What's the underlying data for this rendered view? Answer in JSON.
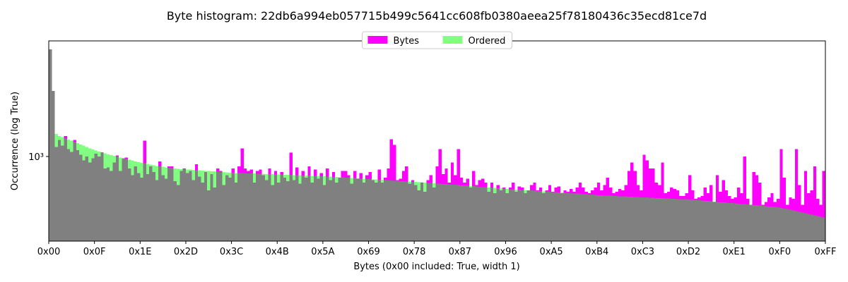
{
  "chart_data": {
    "type": "histogram",
    "title": "Byte histogram: 22db6a994eb057715b499c5641cc608fb0380aeea25f78180436c35ecd81ce7d",
    "x_label": "Bytes (0x00 included: True, width 1)",
    "y_label": "Occurrence (log True)",
    "yscale": "log",
    "legend": "upper center",
    "x": [
      0,
      1,
      2,
      3,
      4,
      5,
      6,
      7,
      8,
      9,
      10,
      11,
      12,
      13,
      14,
      15,
      16,
      17,
      18,
      19,
      20,
      21,
      22,
      23,
      24,
      25,
      26,
      27,
      28,
      29,
      30,
      31,
      32,
      33,
      34,
      35,
      36,
      37,
      38,
      39,
      40,
      41,
      42,
      43,
      44,
      45,
      46,
      47,
      48,
      49,
      50,
      51,
      52,
      53,
      54,
      55,
      56,
      57,
      58,
      59,
      60,
      61,
      62,
      63,
      64,
      65,
      66,
      67,
      68,
      69,
      70,
      71,
      72,
      73,
      74,
      75,
      76,
      77,
      78,
      79,
      80,
      81,
      82,
      83,
      84,
      85,
      86,
      87,
      88,
      89,
      90,
      91,
      92,
      93,
      94,
      95,
      96,
      97,
      98,
      99,
      100,
      101,
      102,
      103,
      104,
      105,
      106,
      107,
      108,
      109,
      110,
      111,
      112,
      113,
      114,
      115,
      116,
      117,
      118,
      119,
      120,
      121,
      122,
      123,
      124,
      125,
      126,
      127,
      128,
      129,
      130,
      131,
      132,
      133,
      134,
      135,
      136,
      137,
      138,
      139,
      140,
      141,
      142,
      143,
      144,
      145,
      146,
      147,
      148,
      149,
      150,
      151,
      152,
      153,
      154,
      155,
      156,
      157,
      158,
      159,
      160,
      161,
      162,
      163,
      164,
      165,
      166,
      167,
      168,
      169,
      170,
      171,
      172,
      173,
      174,
      175,
      176,
      177,
      178,
      179,
      180,
      181,
      182,
      183,
      184,
      185,
      186,
      187,
      188,
      189,
      190,
      191,
      192,
      193,
      194,
      195,
      196,
      197,
      198,
      199,
      200,
      201,
      202,
      203,
      204,
      205,
      206,
      207,
      208,
      209,
      210,
      211,
      212,
      213,
      214,
      215,
      216,
      217,
      218,
      219,
      220,
      221,
      222,
      223,
      224,
      225,
      226,
      227,
      228,
      229,
      230,
      231,
      232,
      233,
      234,
      235,
      236,
      237,
      238,
      239,
      240,
      241,
      242,
      243,
      244,
      245,
      246,
      247,
      248,
      249,
      250,
      251,
      252,
      253,
      254,
      255
    ],
    "series": [
      {
        "name": "Bytes",
        "color": "#ff00ff",
        "values": [
          3090,
          1995,
          1105,
          1190,
          1120,
          1240,
          1080,
          1050,
          1190,
          1070,
          1020,
          960,
          1000,
          940,
          980,
          1030,
          1000,
          1045,
          880,
          890,
          860,
          940,
          1010,
          860,
          980,
          990,
          880,
          820,
          900,
          840,
          800,
          1180,
          830,
          900,
          850,
          780,
          950,
          820,
          790,
          900,
          900,
          770,
          740,
          860,
          880,
          840,
          860,
          780,
          920,
          810,
          760,
          850,
          700,
          830,
          720,
          880,
          860,
          740,
          820,
          800,
          880,
          760,
          900,
          1090,
          880,
          860,
          870,
          760,
          860,
          870,
          820,
          780,
          880,
          740,
          860,
          760,
          850,
          800,
          770,
          1040,
          780,
          890,
          750,
          860,
          800,
          900,
          760,
          870,
          790,
          840,
          740,
          880,
          780,
          850,
          760,
          800,
          860,
          860,
          820,
          750,
          860,
          790,
          840,
          760,
          820,
          850,
          780,
          760,
          870,
          760,
          800,
          880,
          1200,
          1130,
          780,
          790,
          860,
          900,
          750,
          780,
          740,
          700,
          760,
          690,
          780,
          820,
          720,
          900,
          1080,
          830,
          880,
          760,
          940,
          820,
          1080,
          800,
          760,
          790,
          720,
          860,
          740,
          780,
          790,
          760,
          690,
          760,
          680,
          740,
          700,
          720,
          680,
          720,
          760,
          690,
          730,
          720,
          680,
          700,
          740,
          760,
          700,
          720,
          680,
          700,
          740,
          690,
          720,
          730,
          680,
          700,
          690,
          710,
          690,
          720,
          760,
          720,
          690,
          680,
          700,
          720,
          760,
          700,
          740,
          800,
          720,
          680,
          690,
          710,
          700,
          740,
          860,
          940,
          860,
          740,
          700,
          1020,
          960,
          880,
          880,
          760,
          740,
          940,
          680,
          690,
          720,
          710,
          700,
          660,
          660,
          680,
          820,
          700,
          640,
          650,
          660,
          720,
          680,
          740,
          620,
          820,
          690,
          780,
          700,
          660,
          640,
          650,
          720,
          680,
          1000,
          640,
          600,
          850,
          820,
          760,
          600,
          620,
          650,
          680,
          620,
          640,
          1080,
          800,
          600,
          650,
          640,
          1080,
          740,
          600,
          860,
          680,
          700,
          900,
          640,
          600,
          860,
          830
        ]
      },
      {
        "name": "Ordered",
        "color": "#80ff80",
        "values": [
          3090,
          1995,
          1270,
          1240,
          1225,
          1210,
          1195,
          1180,
          1165,
          1150,
          1135,
          1120,
          1105,
          1090,
          1078,
          1066,
          1055,
          1044,
          1034,
          1024,
          1015,
          1006,
          998,
          990,
          982,
          974,
          966,
          958,
          950,
          943,
          936,
          930,
          924,
          918,
          912,
          906,
          901,
          896,
          891,
          887,
          884,
          881,
          878,
          876,
          874,
          872,
          870,
          868,
          866,
          864,
          862,
          860,
          858,
          856,
          854,
          852,
          850,
          848,
          846,
          844,
          842,
          841,
          840,
          839,
          838,
          837,
          836,
          835,
          834,
          833,
          832,
          831,
          830,
          829,
          828,
          827,
          826,
          825,
          824,
          823,
          822,
          821,
          820,
          819,
          818,
          817,
          816,
          815,
          814,
          813,
          812,
          810,
          808,
          807,
          805,
          804,
          802,
          800,
          799,
          797,
          796,
          794,
          792,
          791,
          789,
          788,
          786,
          784,
          783,
          781,
          780,
          778,
          776,
          775,
          773,
          772,
          770,
          768,
          767,
          766,
          765,
          763,
          761,
          760,
          758,
          756,
          754,
          752,
          751,
          749,
          747,
          745,
          743,
          742,
          740,
          738,
          736,
          734,
          733,
          731,
          729,
          727,
          725,
          724,
          722,
          720,
          718,
          716,
          715,
          713,
          711,
          709,
          708,
          706,
          705,
          703,
          702,
          700,
          699,
          697,
          696,
          694,
          693,
          691,
          690,
          688,
          687,
          685,
          684,
          682,
          681,
          679,
          678,
          676,
          675,
          673,
          672,
          670,
          669,
          667,
          665,
          664,
          663,
          662,
          661,
          660,
          659,
          658,
          657,
          656,
          655,
          654,
          653,
          652,
          651,
          650,
          649,
          648,
          647,
          646,
          645,
          644,
          643,
          642,
          641,
          640,
          639,
          638,
          637,
          637,
          636,
          634,
          632,
          631,
          629,
          627,
          625,
          624,
          622,
          620,
          618,
          617,
          615,
          613,
          612,
          610,
          608,
          606,
          605,
          603,
          601,
          599,
          598,
          596,
          594,
          592,
          591,
          589,
          587,
          585,
          582,
          578,
          574,
          570,
          566,
          562,
          558,
          554,
          550,
          546,
          542,
          538,
          534,
          530,
          525,
          520
        ]
      }
    ],
    "xlim": [
      0,
      255
    ],
    "xticks": [
      {
        "value": 0,
        "label": "0x00"
      },
      {
        "value": 15,
        "label": "0x0F"
      },
      {
        "value": 30,
        "label": "0x1E"
      },
      {
        "value": 45,
        "label": "0x2D"
      },
      {
        "value": 60,
        "label": "0x3C"
      },
      {
        "value": 75,
        "label": "0x4B"
      },
      {
        "value": 90,
        "label": "0x5A"
      },
      {
        "value": 105,
        "label": "0x69"
      },
      {
        "value": 120,
        "label": "0x78"
      },
      {
        "value": 135,
        "label": "0x87"
      },
      {
        "value": 150,
        "label": "0x96"
      },
      {
        "value": 165,
        "label": "0xA5"
      },
      {
        "value": 180,
        "label": "0xB4"
      },
      {
        "value": 195,
        "label": "0xC3"
      },
      {
        "value": 210,
        "label": "0xD2"
      },
      {
        "value": 225,
        "label": "0xE1"
      },
      {
        "value": 240,
        "label": "0xF0"
      },
      {
        "value": 255,
        "label": "0xFF"
      }
    ],
    "ylim": [
      410,
      3380
    ],
    "yticks": [
      {
        "value": 1000,
        "label": "10³"
      }
    ]
  }
}
